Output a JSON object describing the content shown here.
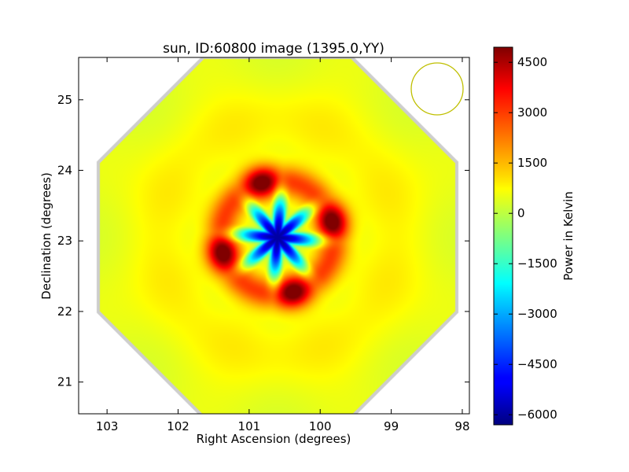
{
  "chart_data": {
    "type": "heatmap",
    "title": "sun, ID:60800 image (1395.0,YY)",
    "xlabel": "Right Ascension (degrees)",
    "ylabel": "Declination (degrees)",
    "x_axis": {
      "range": [
        103.4,
        97.9
      ],
      "inverted": true,
      "ticks": [
        103,
        102,
        101,
        100,
        99,
        98
      ]
    },
    "y_axis": {
      "range": [
        20.55,
        25.6
      ],
      "ticks": [
        21,
        22,
        23,
        24,
        25
      ]
    },
    "colorbar": {
      "label": "Power in Kelvin",
      "colormap": "jet",
      "range": [
        -6300,
        4950
      ],
      "ticks": [
        4500,
        3000,
        1500,
        0,
        -1500,
        -3000,
        -4500,
        -6000
      ],
      "tick_labels": [
        "4500",
        "3000",
        "1500",
        "0",
        "−1500",
        "−3000",
        "−4500",
        "−6000"
      ]
    },
    "image": {
      "footprint_shape": "octagon",
      "center_ra": 100.6,
      "center_dec": 23.05,
      "background_level": 400,
      "central_minimum": -6300,
      "ring_peak": 4500,
      "petals": 8
    },
    "beam_marker": {
      "shape": "circle",
      "ra": 98.35,
      "dec": 25.15,
      "color": "#bfbf00"
    },
    "grid": false
  }
}
